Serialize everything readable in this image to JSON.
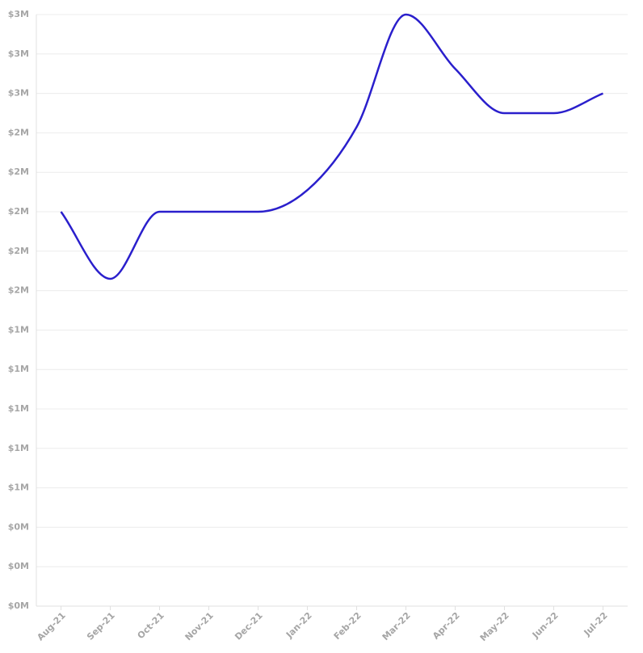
{
  "chart_data": {
    "type": "line",
    "categories": [
      "Aug-21",
      "Sep-21",
      "Oct-21",
      "Nov-21",
      "Dec-21",
      "Jan-22",
      "Feb-22",
      "Mar-22",
      "Apr-22",
      "May-22",
      "Jun-22",
      "Jul-22"
    ],
    "series": [
      {
        "color": "#2a1fcc",
        "values": [
          2000000,
          1660000,
          2000000,
          2000000,
          2000000,
          2110000,
          2430000,
          3000000,
          2725000,
          2500000,
          2500000,
          2600000
        ]
      }
    ],
    "ylim": [
      0,
      3000000
    ],
    "yticks": [
      {
        "value": 0,
        "label": "$0M"
      },
      {
        "value": 200000,
        "label": "$0M"
      },
      {
        "value": 400000,
        "label": "$0M"
      },
      {
        "value": 600000,
        "label": "$1M"
      },
      {
        "value": 800000,
        "label": "$1M"
      },
      {
        "value": 1000000,
        "label": "$1M"
      },
      {
        "value": 1200000,
        "label": "$1M"
      },
      {
        "value": 1400000,
        "label": "$1M"
      },
      {
        "value": 1600000,
        "label": "$2M"
      },
      {
        "value": 1800000,
        "label": "$2M"
      },
      {
        "value": 2000000,
        "label": "$2M"
      },
      {
        "value": 2200000,
        "label": "$2M"
      },
      {
        "value": 2400000,
        "label": "$2M"
      },
      {
        "value": 2600000,
        "label": "$3M"
      },
      {
        "value": 2800000,
        "label": "$3M"
      },
      {
        "value": 3000000,
        "label": "$3M"
      }
    ],
    "grid": true
  }
}
